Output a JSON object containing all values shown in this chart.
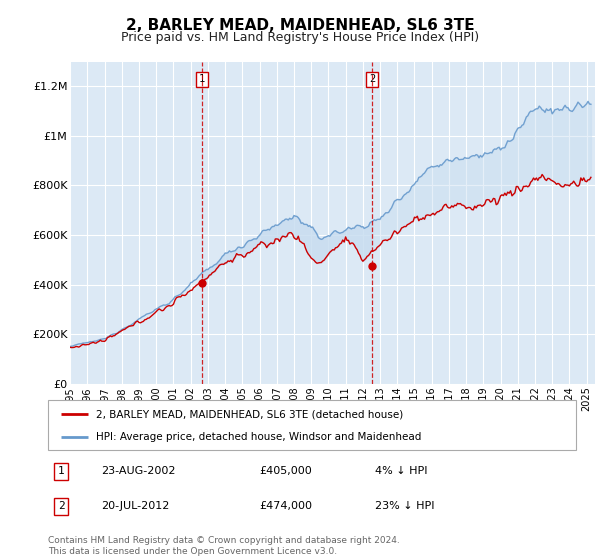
{
  "title": "2, BARLEY MEAD, MAIDENHEAD, SL6 3TE",
  "subtitle": "Price paid vs. HM Land Registry's House Price Index (HPI)",
  "title_fontsize": 11,
  "subtitle_fontsize": 9,
  "background_color": "#ffffff",
  "plot_bg_color": "#dce9f5",
  "grid_color": "#ffffff",
  "ylabel_ticks": [
    "£0",
    "£200K",
    "£400K",
    "£600K",
    "£800K",
    "£1M",
    "£1.2M"
  ],
  "ytick_vals": [
    0,
    200000,
    400000,
    600000,
    800000,
    1000000,
    1200000
  ],
  "ylim": [
    0,
    1300000
  ],
  "xlim_start": 1995.0,
  "xlim_end": 2025.5,
  "sale1_x": 2002.644,
  "sale1_y": 405000,
  "sale2_x": 2012.544,
  "sale2_y": 474000,
  "sale1_date": "23-AUG-2002",
  "sale1_price": "£405,000",
  "sale1_hpi": "4% ↓ HPI",
  "sale2_date": "20-JUL-2012",
  "sale2_price": "£474,000",
  "sale2_hpi": "23% ↓ HPI",
  "red_line_color": "#cc0000",
  "blue_line_color": "#6699cc",
  "shade_color": "#c8ddf0",
  "legend_house_label": "2, BARLEY MEAD, MAIDENHEAD, SL6 3TE (detached house)",
  "legend_hpi_label": "HPI: Average price, detached house, Windsor and Maidenhead",
  "footer_text": "Contains HM Land Registry data © Crown copyright and database right 2024.\nThis data is licensed under the Open Government Licence v3.0.",
  "xtick_years": [
    1995,
    1996,
    1997,
    1998,
    1999,
    2000,
    2001,
    2002,
    2003,
    2004,
    2005,
    2006,
    2007,
    2008,
    2009,
    2010,
    2011,
    2012,
    2013,
    2014,
    2015,
    2016,
    2017,
    2018,
    2019,
    2020,
    2021,
    2022,
    2023,
    2024,
    2025
  ]
}
